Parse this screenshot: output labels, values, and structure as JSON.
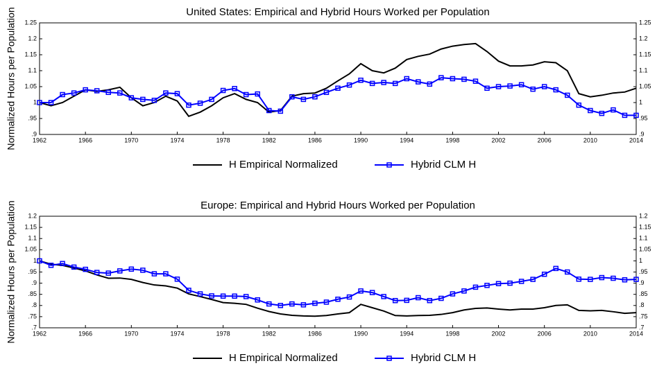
{
  "chart_data": [
    {
      "type": "line",
      "title": "United States: Empirical and Hybrid Hours Worked per Population",
      "ylabel": "Normalized Hours per Population",
      "x": [
        1962,
        1963,
        1964,
        1965,
        1966,
        1967,
        1968,
        1969,
        1970,
        1971,
        1972,
        1973,
        1974,
        1975,
        1976,
        1977,
        1978,
        1979,
        1980,
        1981,
        1982,
        1983,
        1984,
        1985,
        1986,
        1987,
        1988,
        1989,
        1990,
        1991,
        1992,
        1993,
        1994,
        1995,
        1996,
        1997,
        1998,
        1999,
        2000,
        2001,
        2002,
        2003,
        2004,
        2005,
        2006,
        2007,
        2008,
        2009,
        2010,
        2011,
        2012,
        2013,
        2014
      ],
      "xlim": [
        1962,
        2014
      ],
      "xticks": [
        1962,
        1966,
        1970,
        1974,
        1978,
        1982,
        1986,
        1990,
        1994,
        1998,
        2002,
        2006,
        2010,
        2014
      ],
      "ylim": [
        0.9,
        1.25
      ],
      "yticks": [
        {
          "value": 0.9,
          "label": ".9"
        },
        {
          "value": 0.95,
          "label": ".95"
        },
        1,
        1.05,
        1.1,
        1.15,
        1.2,
        1.25
      ],
      "series": [
        {
          "name": "H Empirical Normalized",
          "color": "#000000",
          "marker": "none",
          "values": [
            1.0,
            0.99,
            1.0,
            1.02,
            1.04,
            1.035,
            1.04,
            1.048,
            1.015,
            0.99,
            1.0,
            1.02,
            1.005,
            0.957,
            0.97,
            0.99,
            1.015,
            1.028,
            1.01,
            1.0,
            0.97,
            0.975,
            1.02,
            1.028,
            1.03,
            1.045,
            1.068,
            1.09,
            1.122,
            1.1,
            1.093,
            1.108,
            1.135,
            1.145,
            1.152,
            1.168,
            1.177,
            1.182,
            1.185,
            1.16,
            1.13,
            1.115,
            1.115,
            1.118,
            1.128,
            1.125,
            1.1,
            1.028,
            1.018,
            1.023,
            1.03,
            1.033,
            1.045
          ]
        },
        {
          "name": "Hybrid CLM H",
          "color": "#0000ff",
          "marker": "square",
          "values": [
            1.0,
            1.0,
            1.025,
            1.03,
            1.04,
            1.037,
            1.032,
            1.03,
            1.015,
            1.01,
            1.007,
            1.03,
            1.028,
            0.992,
            0.998,
            1.01,
            1.038,
            1.044,
            1.025,
            1.027,
            0.975,
            0.973,
            1.018,
            1.01,
            1.018,
            1.032,
            1.045,
            1.055,
            1.07,
            1.06,
            1.063,
            1.06,
            1.075,
            1.065,
            1.058,
            1.078,
            1.075,
            1.073,
            1.067,
            1.045,
            1.05,
            1.052,
            1.056,
            1.042,
            1.05,
            1.04,
            1.023,
            0.992,
            0.975,
            0.966,
            0.977,
            0.96,
            0.96
          ]
        }
      ]
    },
    {
      "type": "line",
      "title": "Europe: Empirical and Hybrid Hours Worked per Population",
      "ylabel": "Normalized Hours per Population",
      "x": [
        1962,
        1963,
        1964,
        1965,
        1966,
        1967,
        1968,
        1969,
        1970,
        1971,
        1972,
        1973,
        1974,
        1975,
        1976,
        1977,
        1978,
        1979,
        1980,
        1981,
        1982,
        1983,
        1984,
        1985,
        1986,
        1987,
        1988,
        1989,
        1990,
        1991,
        1992,
        1993,
        1994,
        1995,
        1996,
        1997,
        1998,
        1999,
        2000,
        2001,
        2002,
        2003,
        2004,
        2005,
        2006,
        2007,
        2008,
        2009,
        2010,
        2011,
        2012,
        2013,
        2014
      ],
      "xlim": [
        1962,
        2014
      ],
      "xticks": [
        1962,
        1966,
        1970,
        1974,
        1978,
        1982,
        1986,
        1990,
        1994,
        1998,
        2002,
        2006,
        2010,
        2014
      ],
      "ylim": [
        0.7,
        1.2
      ],
      "yticks": [
        {
          "value": 0.7,
          "label": ".7"
        },
        {
          "value": 0.75,
          "label": ".75"
        },
        {
          "value": 0.8,
          "label": ".8"
        },
        {
          "value": 0.85,
          "label": ".85"
        },
        {
          "value": 0.9,
          "label": ".9"
        },
        {
          "value": 0.95,
          "label": ".95"
        },
        1,
        1.05,
        1.1,
        1.15,
        1.2
      ],
      "series": [
        {
          "name": "H Empirical Normalized",
          "color": "#000000",
          "marker": "none",
          "values": [
            1.0,
            0.985,
            0.98,
            0.968,
            0.955,
            0.937,
            0.922,
            0.923,
            0.917,
            0.903,
            0.892,
            0.888,
            0.878,
            0.852,
            0.84,
            0.827,
            0.813,
            0.81,
            0.805,
            0.788,
            0.773,
            0.762,
            0.756,
            0.753,
            0.752,
            0.755,
            0.762,
            0.768,
            0.805,
            0.79,
            0.775,
            0.755,
            0.753,
            0.755,
            0.756,
            0.76,
            0.768,
            0.78,
            0.787,
            0.789,
            0.784,
            0.78,
            0.784,
            0.784,
            0.79,
            0.8,
            0.803,
            0.778,
            0.776,
            0.778,
            0.772,
            0.765,
            0.768
          ]
        },
        {
          "name": "Hybrid CLM H",
          "color": "#0000ff",
          "marker": "square",
          "values": [
            1.0,
            0.98,
            0.988,
            0.972,
            0.962,
            0.948,
            0.945,
            0.955,
            0.963,
            0.958,
            0.942,
            0.942,
            0.918,
            0.868,
            0.852,
            0.843,
            0.842,
            0.842,
            0.84,
            0.825,
            0.807,
            0.8,
            0.807,
            0.803,
            0.81,
            0.815,
            0.828,
            0.838,
            0.865,
            0.858,
            0.84,
            0.822,
            0.823,
            0.835,
            0.822,
            0.832,
            0.852,
            0.865,
            0.882,
            0.89,
            0.898,
            0.9,
            0.908,
            0.917,
            0.94,
            0.966,
            0.95,
            0.918,
            0.917,
            0.925,
            0.922,
            0.915,
            0.917
          ]
        }
      ]
    }
  ]
}
